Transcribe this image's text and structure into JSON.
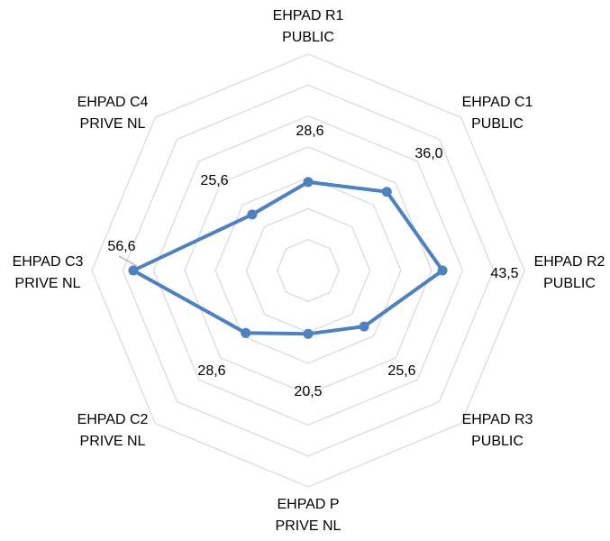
{
  "chart_data": {
    "type": "radar",
    "title": "",
    "categories": [
      [
        "EHPAD R1",
        "PUBLIC"
      ],
      [
        "EHPAD C1",
        "PUBLIC"
      ],
      [
        "EHPAD R2",
        "PUBLIC"
      ],
      [
        "EHPAD R3",
        "PUBLIC"
      ],
      [
        "EHPAD P",
        "PRIVE NL"
      ],
      [
        "EHPAD C2",
        "PRIVE NL"
      ],
      [
        "EHPAD C3",
        "PRIVE NL"
      ],
      [
        "EHPAD C4",
        "PRIVE NL"
      ]
    ],
    "series": [
      {
        "values": [
          28.6,
          36.0,
          43.5,
          25.6,
          20.5,
          28.6,
          56.6,
          25.6
        ],
        "labels": [
          "28,6",
          "36,0",
          "43,5",
          "25,6",
          "20,5",
          "28,6",
          "56,6",
          "25,6"
        ],
        "color": "#4f81bd"
      }
    ],
    "ylim": [
      0,
      70
    ],
    "grid": true,
    "grid_rings": 7,
    "legend": "none",
    "grid_color": "#d9d9d9",
    "text_color": "#000000"
  }
}
